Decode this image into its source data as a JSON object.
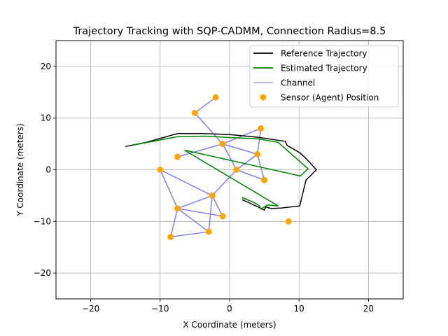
{
  "chart_data": {
    "type": "line",
    "title": "Trajectory Tracking with SQP-CADMM, Connection Radius=8.5",
    "xlabel": "X Coordinate (meters)",
    "ylabel": "Y Coordinate (meters)",
    "xlim": [
      -25,
      25
    ],
    "ylim": [
      -25,
      25
    ],
    "xticks": [
      -20,
      -10,
      0,
      10,
      20
    ],
    "yticks": [
      -20,
      -10,
      0,
      10,
      20
    ],
    "xtick_labels": [
      "−20",
      "−10",
      "0",
      "10",
      "20"
    ],
    "ytick_labels": [
      "−20",
      "−10",
      "0",
      "10",
      "20"
    ],
    "grid": true,
    "legend_position": "top-right",
    "colors": {
      "reference": "#000000",
      "estimated": "#008000",
      "channel": "#8080f0",
      "sensor": "#ffa500"
    },
    "legend": [
      {
        "label": "Reference Trajectory",
        "kind": "line",
        "color": "#000000"
      },
      {
        "label": "Estimated Trajectory",
        "kind": "line",
        "color": "#008000"
      },
      {
        "label": "Channel",
        "kind": "line",
        "color": "#b0b0f0"
      },
      {
        "label": "Sensor (Agent) Position",
        "kind": "marker",
        "color": "#ffa500"
      }
    ],
    "series": [
      {
        "name": "Reference Trajectory",
        "points": [
          [
            -15,
            4.5
          ],
          [
            -12,
            5.3
          ],
          [
            -7.5,
            7.0
          ],
          [
            -4,
            7.0
          ],
          [
            0,
            6.8
          ],
          [
            4,
            6.3
          ],
          [
            8,
            5.5
          ],
          [
            8.3,
            4.7
          ],
          [
            10.2,
            3.2
          ],
          [
            11,
            2.2
          ],
          [
            12.5,
            0
          ],
          [
            11,
            -2
          ],
          [
            10.1,
            -7
          ],
          [
            7.5,
            -7.4
          ],
          [
            6,
            -7.5
          ],
          [
            5.2,
            -7.2
          ],
          [
            5,
            -7.8
          ],
          [
            3,
            -6.5
          ],
          [
            1.8,
            -5.8
          ]
        ]
      },
      {
        "name": "Estimated Trajectory",
        "points": [
          [
            -13.8,
            4.8
          ],
          [
            -7.5,
            6.4
          ],
          [
            -3.5,
            6.5
          ],
          [
            0.5,
            6.2
          ],
          [
            4,
            6
          ],
          [
            7,
            5.3
          ],
          [
            11.3,
            0.2
          ],
          [
            10.2,
            -1.2
          ],
          [
            -6.5,
            3.8
          ],
          [
            7,
            -7
          ],
          [
            5.5,
            -6.8
          ],
          [
            4.5,
            -7.6
          ],
          [
            4.3,
            -7
          ],
          [
            3.5,
            -6.3
          ],
          [
            1.8,
            -5.4
          ],
          [
            2.5,
            -5.7
          ]
        ]
      }
    ],
    "sensors": [
      [
        -2,
        14
      ],
      [
        -5,
        11
      ],
      [
        4.5,
        8
      ],
      [
        -1,
        5
      ],
      [
        4,
        3
      ],
      [
        -7.5,
        2.5
      ],
      [
        -10,
        0
      ],
      [
        1,
        0
      ],
      [
        5,
        -2
      ],
      [
        -2.5,
        -5
      ],
      [
        -7.5,
        -7.5
      ],
      [
        -1,
        -9
      ],
      [
        8.5,
        -10
      ],
      [
        -3,
        -12
      ],
      [
        -8.5,
        -13
      ]
    ],
    "channels": [
      [
        0,
        1
      ],
      [
        1,
        3
      ],
      [
        2,
        3
      ],
      [
        2,
        4
      ],
      [
        3,
        4
      ],
      [
        3,
        5
      ],
      [
        3,
        7
      ],
      [
        4,
        7
      ],
      [
        4,
        8
      ],
      [
        7,
        8
      ],
      [
        6,
        9
      ],
      [
        7,
        9
      ],
      [
        6,
        10
      ],
      [
        9,
        10
      ],
      [
        9,
        11
      ],
      [
        9,
        13
      ],
      [
        10,
        11
      ],
      [
        10,
        13
      ],
      [
        10,
        14
      ],
      [
        13,
        14
      ]
    ]
  }
}
